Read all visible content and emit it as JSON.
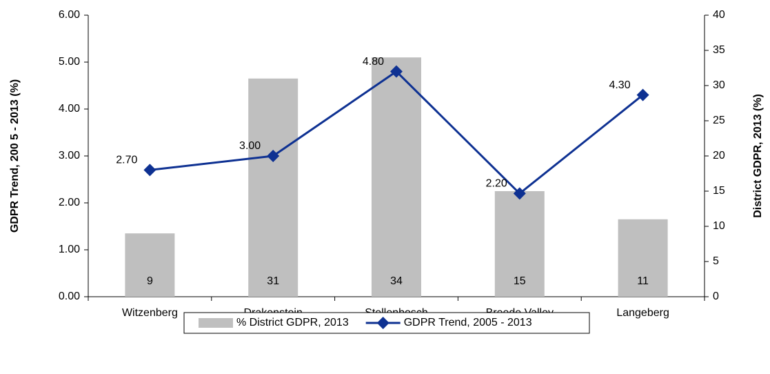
{
  "chart_data": {
    "type": "combo",
    "categories": [
      "Witzenberg",
      "Drakenstein",
      "Stellenbosch",
      "Breede Valley",
      "Langeberg"
    ],
    "ylabel": "GDPR Trend, 200 5 - 2013 (%)",
    "y2label": "District GDPR, 2013 (%)",
    "ylim": [
      0,
      6
    ],
    "yticks": [
      {
        "value": 0,
        "label": "0.00"
      },
      {
        "value": 1,
        "label": "1.00"
      },
      {
        "value": 2,
        "label": "2.00"
      },
      {
        "value": 3,
        "label": "3.00"
      },
      {
        "value": 4,
        "label": "4.00"
      },
      {
        "value": 5,
        "label": "5.00"
      },
      {
        "value": 6,
        "label": "6.00"
      }
    ],
    "y2lim": [
      0,
      40
    ],
    "y2ticks": [
      0,
      5,
      10,
      15,
      20,
      25,
      30,
      35,
      40
    ],
    "legend": "bottom",
    "series": [
      {
        "name": "% District GDPR, 2013",
        "type": "bar",
        "axis": "y2",
        "color": "#bfbfbf",
        "values": [
          9,
          31,
          34,
          15,
          11
        ]
      },
      {
        "name": "GDPR Trend, 2005 - 2013",
        "type": "line",
        "axis": "y",
        "color": "#0e3192",
        "values": [
          2.7,
          3.0,
          4.8,
          2.2,
          4.3
        ],
        "value_labels": [
          "2.70",
          "3.00",
          "4.80",
          "2.20",
          "4.30"
        ]
      }
    ]
  }
}
